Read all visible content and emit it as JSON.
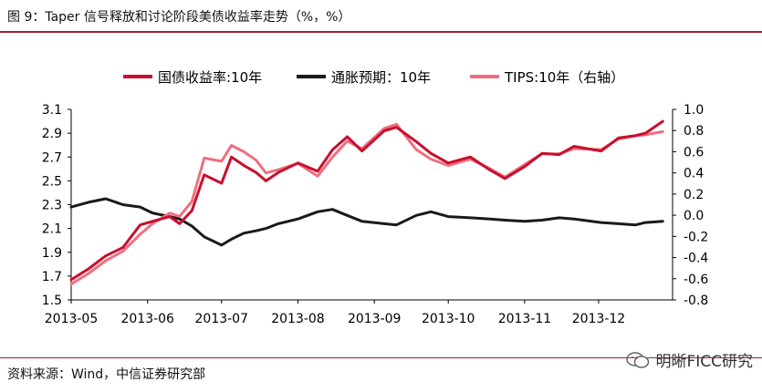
{
  "figure_title": "图 9：Taper 信号释放和讨论阶段美债收益率走势（%，%）",
  "source_text": "资料来源：Wind，中信证券研究部",
  "watermark_text": "明晰FICC研究",
  "colors": {
    "accent_rule": "#a31f34",
    "yield_line": "#c8102e",
    "breakeven_line": "#1a1a1a",
    "tips_line": "#ef6f80"
  },
  "chart_data": {
    "type": "line",
    "legend_position": "top",
    "x_tick_labels": [
      "2013-05",
      "2013-06",
      "2013-07",
      "2013-08",
      "2013-09",
      "2013-10",
      "2013-11",
      "2013-12"
    ],
    "y_left": {
      "lim": [
        1.5,
        3.1
      ],
      "ticks": [
        "1.5",
        "1.7",
        "1.9",
        "2.1",
        "2.3",
        "2.5",
        "2.7",
        "2.9",
        "3.1"
      ]
    },
    "y_right": {
      "lim": [
        -0.8,
        1.0
      ],
      "ticks": [
        "-0.8",
        "-0.6",
        "-0.4",
        "-0.2",
        "0.0",
        "0.2",
        "0.4",
        "0.6",
        "0.8",
        "1.0"
      ]
    },
    "series": [
      {
        "name": "国债收益率:10年",
        "axis": "left",
        "color": "#c8102e",
        "points": [
          [
            "2013-05-01",
            1.67
          ],
          [
            "2013-05-08",
            1.76
          ],
          [
            "2013-05-15",
            1.87
          ],
          [
            "2013-05-22",
            1.94
          ],
          [
            "2013-05-29",
            2.13
          ],
          [
            "2013-06-03",
            2.16
          ],
          [
            "2013-06-10",
            2.2
          ],
          [
            "2013-06-14",
            2.14
          ],
          [
            "2013-06-19",
            2.25
          ],
          [
            "2013-06-24",
            2.55
          ],
          [
            "2013-07-01",
            2.48
          ],
          [
            "2013-07-05",
            2.7
          ],
          [
            "2013-07-10",
            2.63
          ],
          [
            "2013-07-15",
            2.57
          ],
          [
            "2013-07-19",
            2.5
          ],
          [
            "2013-07-24",
            2.57
          ],
          [
            "2013-08-01",
            2.65
          ],
          [
            "2013-08-09",
            2.58
          ],
          [
            "2013-08-15",
            2.76
          ],
          [
            "2013-08-21",
            2.87
          ],
          [
            "2013-08-27",
            2.75
          ],
          [
            "2013-09-05",
            2.92
          ],
          [
            "2013-09-10",
            2.95
          ],
          [
            "2013-09-18",
            2.83
          ],
          [
            "2013-09-24",
            2.73
          ],
          [
            "2013-10-01",
            2.65
          ],
          [
            "2013-10-10",
            2.7
          ],
          [
            "2013-10-18",
            2.59
          ],
          [
            "2013-10-24",
            2.52
          ],
          [
            "2013-11-01",
            2.62
          ],
          [
            "2013-11-08",
            2.73
          ],
          [
            "2013-11-15",
            2.72
          ],
          [
            "2013-11-21",
            2.79
          ],
          [
            "2013-12-02",
            2.75
          ],
          [
            "2013-12-09",
            2.86
          ],
          [
            "2013-12-16",
            2.88
          ],
          [
            "2013-12-20",
            2.9
          ],
          [
            "2013-12-27",
            3.0
          ]
        ]
      },
      {
        "name": "通胀预期：10年",
        "axis": "left",
        "color": "#1a1a1a",
        "points": [
          [
            "2013-05-01",
            2.28
          ],
          [
            "2013-05-08",
            2.32
          ],
          [
            "2013-05-15",
            2.35
          ],
          [
            "2013-05-22",
            2.3
          ],
          [
            "2013-05-29",
            2.28
          ],
          [
            "2013-06-03",
            2.23
          ],
          [
            "2013-06-10",
            2.2
          ],
          [
            "2013-06-14",
            2.18
          ],
          [
            "2013-06-19",
            2.12
          ],
          [
            "2013-06-24",
            2.03
          ],
          [
            "2013-07-01",
            1.96
          ],
          [
            "2013-07-05",
            2.01
          ],
          [
            "2013-07-10",
            2.06
          ],
          [
            "2013-07-15",
            2.08
          ],
          [
            "2013-07-19",
            2.1
          ],
          [
            "2013-07-24",
            2.14
          ],
          [
            "2013-08-01",
            2.18
          ],
          [
            "2013-08-09",
            2.24
          ],
          [
            "2013-08-15",
            2.26
          ],
          [
            "2013-08-21",
            2.21
          ],
          [
            "2013-08-27",
            2.16
          ],
          [
            "2013-09-05",
            2.14
          ],
          [
            "2013-09-10",
            2.13
          ],
          [
            "2013-09-18",
            2.21
          ],
          [
            "2013-09-24",
            2.24
          ],
          [
            "2013-10-01",
            2.2
          ],
          [
            "2013-10-10",
            2.19
          ],
          [
            "2013-10-18",
            2.18
          ],
          [
            "2013-10-24",
            2.17
          ],
          [
            "2013-11-01",
            2.16
          ],
          [
            "2013-11-08",
            2.17
          ],
          [
            "2013-11-15",
            2.19
          ],
          [
            "2013-11-21",
            2.18
          ],
          [
            "2013-12-02",
            2.15
          ],
          [
            "2013-12-09",
            2.14
          ],
          [
            "2013-12-16",
            2.13
          ],
          [
            "2013-12-20",
            2.15
          ],
          [
            "2013-12-27",
            2.16
          ]
        ]
      },
      {
        "name": "TIPS:10年（右轴）",
        "axis": "right",
        "color": "#ef6f80",
        "points": [
          [
            "2013-05-01",
            -0.65
          ],
          [
            "2013-05-08",
            -0.55
          ],
          [
            "2013-05-15",
            -0.43
          ],
          [
            "2013-05-22",
            -0.34
          ],
          [
            "2013-05-29",
            -0.18
          ],
          [
            "2013-06-03",
            -0.08
          ],
          [
            "2013-06-10",
            0.02
          ],
          [
            "2013-06-14",
            -0.01
          ],
          [
            "2013-06-19",
            0.13
          ],
          [
            "2013-06-24",
            0.54
          ],
          [
            "2013-07-01",
            0.51
          ],
          [
            "2013-07-05",
            0.66
          ],
          [
            "2013-07-10",
            0.6
          ],
          [
            "2013-07-15",
            0.52
          ],
          [
            "2013-07-19",
            0.4
          ],
          [
            "2013-07-24",
            0.43
          ],
          [
            "2013-08-01",
            0.49
          ],
          [
            "2013-08-09",
            0.37
          ],
          [
            "2013-08-15",
            0.55
          ],
          [
            "2013-08-21",
            0.7
          ],
          [
            "2013-08-27",
            0.63
          ],
          [
            "2013-09-05",
            0.82
          ],
          [
            "2013-09-10",
            0.86
          ],
          [
            "2013-09-18",
            0.62
          ],
          [
            "2013-09-24",
            0.53
          ],
          [
            "2013-10-01",
            0.47
          ],
          [
            "2013-10-10",
            0.53
          ],
          [
            "2013-10-18",
            0.44
          ],
          [
            "2013-10-24",
            0.36
          ],
          [
            "2013-11-01",
            0.48
          ],
          [
            "2013-11-08",
            0.58
          ],
          [
            "2013-11-15",
            0.58
          ],
          [
            "2013-11-21",
            0.63
          ],
          [
            "2013-12-02",
            0.62
          ],
          [
            "2013-12-09",
            0.72
          ],
          [
            "2013-12-16",
            0.75
          ],
          [
            "2013-12-20",
            0.76
          ],
          [
            "2013-12-27",
            0.79
          ]
        ]
      }
    ]
  }
}
